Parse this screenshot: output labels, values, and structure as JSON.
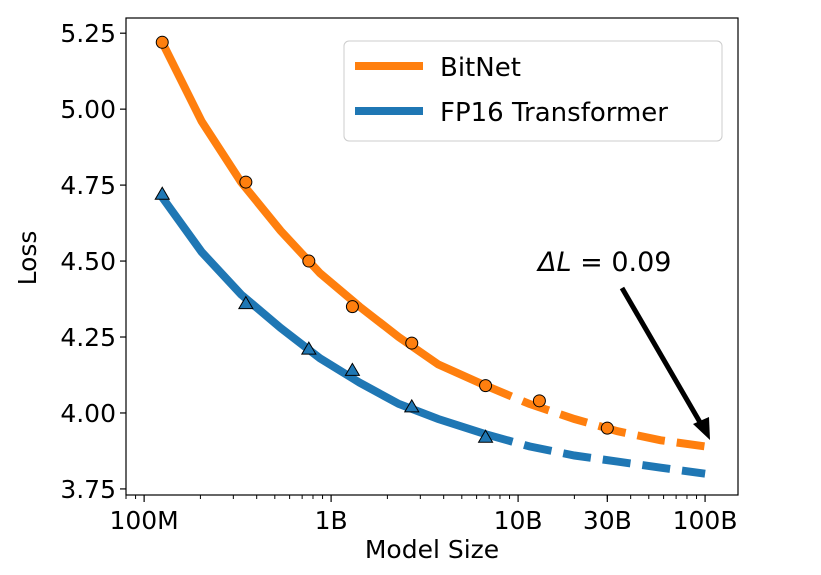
{
  "chart_data": {
    "type": "line",
    "xlabel": "Model Size",
    "ylabel": "Loss",
    "xscale": "log",
    "xlim": [
      80000000,
      150000000000
    ],
    "ylim": [
      3.73,
      5.3
    ],
    "x_ticks": [
      {
        "value": 100000000,
        "label": "100M"
      },
      {
        "value": 1000000000,
        "label": "1B"
      },
      {
        "value": 10000000000,
        "label": "10B"
      },
      {
        "value": 30000000000,
        "label": "30B"
      },
      {
        "value": 100000000000,
        "label": "100B"
      }
    ],
    "y_ticks": [
      {
        "value": 3.75,
        "label": "3.75"
      },
      {
        "value": 4.0,
        "label": "4.00"
      },
      {
        "value": 4.25,
        "label": "4.25"
      },
      {
        "value": 4.5,
        "label": "4.50"
      },
      {
        "value": 4.75,
        "label": "4.75"
      },
      {
        "value": 5.0,
        "label": "5.00"
      },
      {
        "value": 5.25,
        "label": "5.25"
      }
    ],
    "series": [
      {
        "name": "BitNet",
        "color": "#ff7f0e",
        "marker": "circle",
        "points": [
          {
            "x": 125000000,
            "y": 5.22
          },
          {
            "x": 350000000,
            "y": 4.76
          },
          {
            "x": 760000000,
            "y": 4.5
          },
          {
            "x": 1300000000,
            "y": 4.35
          },
          {
            "x": 2700000000,
            "y": 4.23
          },
          {
            "x": 6700000000,
            "y": 4.09
          },
          {
            "x": 13000000000,
            "y": 4.04
          },
          {
            "x": 30000000000,
            "y": 3.95
          }
        ],
        "fit_solid": [
          [
            125000000,
            5.22
          ],
          [
            203000000,
            4.96
          ],
          [
            330000000,
            4.76
          ],
          [
            537000000,
            4.6
          ],
          [
            872000000,
            4.46
          ],
          [
            1420000000,
            4.35
          ],
          [
            2300000000,
            4.25
          ],
          [
            3740000000,
            4.16
          ],
          [
            6700000000,
            4.09
          ]
        ],
        "fit_dashed": [
          [
            6700000000,
            4.09
          ],
          [
            11500000000,
            4.03
          ],
          [
            20000000000,
            3.98
          ],
          [
            34000000000,
            3.94
          ],
          [
            58000000000,
            3.91
          ],
          [
            100000000000,
            3.89
          ]
        ]
      },
      {
        "name": "FP16 Transformer",
        "color": "#1f77b4",
        "marker": "triangle",
        "points": [
          {
            "x": 125000000,
            "y": 4.72
          },
          {
            "x": 350000000,
            "y": 4.36
          },
          {
            "x": 760000000,
            "y": 4.21
          },
          {
            "x": 1300000000,
            "y": 4.14
          },
          {
            "x": 2700000000,
            "y": 4.02
          },
          {
            "x": 6700000000,
            "y": 3.92
          }
        ],
        "fit_solid": [
          [
            125000000,
            4.71
          ],
          [
            203000000,
            4.53
          ],
          [
            330000000,
            4.39
          ],
          [
            537000000,
            4.28
          ],
          [
            872000000,
            4.18
          ],
          [
            1420000000,
            4.1
          ],
          [
            2300000000,
            4.03
          ],
          [
            3740000000,
            3.98
          ],
          [
            6700000000,
            3.93
          ]
        ],
        "fit_dashed": [
          [
            6700000000,
            3.93
          ],
          [
            11500000000,
            3.89
          ],
          [
            20000000000,
            3.86
          ],
          [
            34000000000,
            3.84
          ],
          [
            58000000000,
            3.82
          ],
          [
            100000000000,
            3.8
          ]
        ]
      }
    ],
    "legend_position": "top-right",
    "annotation": {
      "prefix": "ΔL",
      "text": " = 0.09",
      "arrow_to": [
        100000000000,
        3.89
      ]
    },
    "grid": false
  }
}
